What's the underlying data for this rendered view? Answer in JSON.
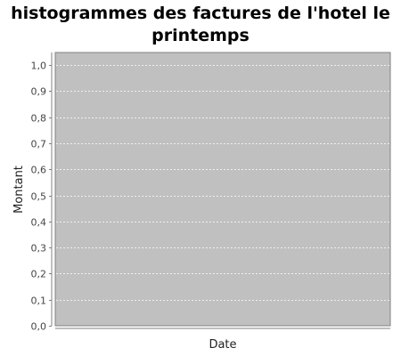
{
  "chart_data": {
    "type": "bar",
    "title": "histogrammes des factures de l'hotel le printemps",
    "xlabel": "Date",
    "ylabel": "Montant",
    "categories": [],
    "series": [],
    "ylim": [
      0.0,
      1.0
    ],
    "yticks": [
      "0,0",
      "0,1",
      "0,2",
      "0,3",
      "0,4",
      "0,5",
      "0,6",
      "0,7",
      "0,8",
      "0,9",
      "1,0"
    ],
    "grid": true,
    "legend": "none"
  },
  "colors": {
    "plot_background": "#c0c0c0",
    "gridline": "#ffffff",
    "axis_line": "#808080"
  }
}
